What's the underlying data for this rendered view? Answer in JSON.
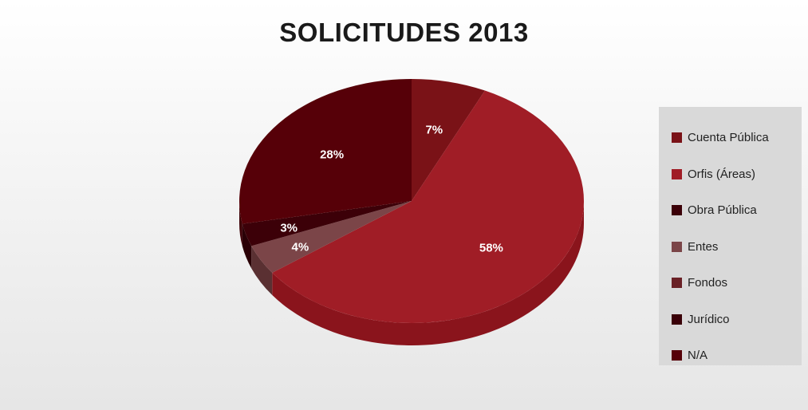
{
  "chart_data": {
    "type": "pie",
    "title": "SOLICITUDES 2013",
    "slices": [
      {
        "name": "Cuenta Pública",
        "value": 7,
        "label": "7%",
        "color": "#7a1217",
        "side_color": "#5a0d11"
      },
      {
        "name": "Orfis (Áreas)",
        "value": 58,
        "label": "58%",
        "color": "#a01d26",
        "side_color": "#8a141c"
      },
      {
        "name": "Entes",
        "value": 4,
        "label": "4%",
        "color": "#7b4548",
        "side_color": "#5a3032"
      },
      {
        "name": "Obra Pública",
        "value": 3,
        "label": "3%",
        "color": "#3c0008",
        "side_color": "#2a0006"
      },
      {
        "name": "N/A",
        "value": 28,
        "label": "28%",
        "color": "#560008",
        "side_color": "#3d0006"
      }
    ],
    "legend": {
      "position": "right",
      "entries": [
        {
          "label": "Cuenta Pública",
          "color": "#7a1217"
        },
        {
          "label": "Orfis (Áreas)",
          "color": "#a01d26"
        },
        {
          "label": "Obra Pública",
          "color": "#3c0008"
        },
        {
          "label": "Entes",
          "color": "#7b4548"
        },
        {
          "label": "Fondos",
          "color": "#6a2126"
        },
        {
          "label": "Jurídico",
          "color": "#3a0008"
        },
        {
          "label": "N/A",
          "color": "#560008"
        }
      ]
    }
  }
}
